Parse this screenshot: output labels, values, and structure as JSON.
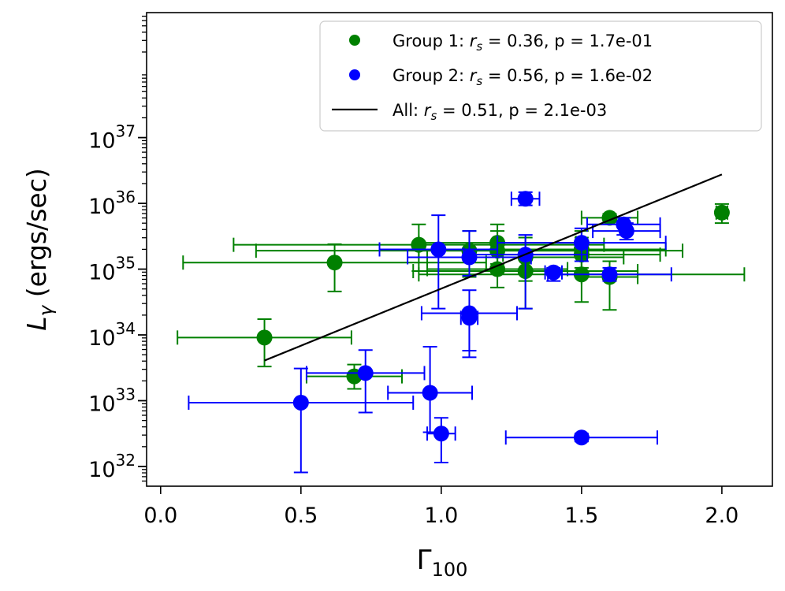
{
  "chart_data": {
    "type": "scatter",
    "title": "",
    "xlabel": "Γ",
    "xlabel_sub": "100",
    "ylabel": "L",
    "ylabel_sub": "γ",
    "ylabel_units": " (ergs/sec)",
    "xlim": [
      -0.05,
      2.18
    ],
    "ylim_log10": [
      31.7,
      38.9
    ],
    "yscale": "log",
    "grid": false,
    "x_ticks": [
      {
        "value": 0.0,
        "label": "0.0"
      },
      {
        "value": 0.5,
        "label": "0.5"
      },
      {
        "value": 1.0,
        "label": "1.0"
      },
      {
        "value": 1.5,
        "label": "1.5"
      },
      {
        "value": 2.0,
        "label": "2.0"
      }
    ],
    "y_ticks": [
      {
        "exp": 32,
        "base": "10",
        "sup": "32"
      },
      {
        "exp": 33,
        "base": "10",
        "sup": "33"
      },
      {
        "exp": 34,
        "base": "10",
        "sup": "34"
      },
      {
        "exp": 35,
        "base": "10",
        "sup": "35"
      },
      {
        "exp": 36,
        "base": "10",
        "sup": "36"
      },
      {
        "exp": 37,
        "base": "10",
        "sup": "37"
      }
    ],
    "legend": {
      "position": "top-right",
      "entries": [
        {
          "marker": "dot",
          "color": "#008000",
          "prefix": "Group 1: ",
          "rs_symbol": "r",
          "rs_sub": "s",
          "stats": " = 0.36, p = 1.7e-01"
        },
        {
          "marker": "dot",
          "color": "#0000ff",
          "prefix": "Group 2: ",
          "rs_symbol": "r",
          "rs_sub": "s",
          "stats": " = 0.56, p = 1.6e-02"
        },
        {
          "marker": "line",
          "color": "#000000",
          "prefix": "All: ",
          "rs_symbol": "r",
          "rs_sub": "s",
          "stats": " = 0.51, p = 2.1e-03"
        }
      ]
    },
    "fit_line": {
      "name": "All",
      "color": "#000000",
      "x": [
        0.37,
        2.0
      ],
      "log10_y": [
        33.61,
        36.44
      ]
    },
    "series": [
      {
        "name": "Group 1",
        "color": "#008000",
        "points": [
          {
            "x": 0.37,
            "logy": 33.96,
            "xlo": 0.06,
            "xhi": 0.68,
            "ylo": 33.52,
            "yhi": 34.24
          },
          {
            "x": 0.62,
            "logy": 35.1,
            "xlo": 0.08,
            "xhi": 1.16,
            "ylo": 34.66,
            "yhi": 35.38
          },
          {
            "x": 0.69,
            "logy": 33.37,
            "xlo": 0.52,
            "xhi": 0.86,
            "ylo": 33.18,
            "yhi": 33.55
          },
          {
            "x": 0.92,
            "logy": 35.37,
            "xlo": 0.26,
            "xhi": 1.58,
            "ylo": 34.97,
            "yhi": 35.68
          },
          {
            "x": 1.1,
            "logy": 35.28,
            "xlo": 0.34,
            "xhi": 1.86,
            "ylo": 34.88,
            "yhi": 35.58
          },
          {
            "x": 1.2,
            "logy": 35.4,
            "xlo": 0.92,
            "xhi": 1.48,
            "ylo": 35.08,
            "yhi": 35.68
          },
          {
            "x": 1.2,
            "logy": 35.0,
            "xlo": 0.95,
            "xhi": 1.45,
            "ylo": 34.72,
            "yhi": 35.28
          },
          {
            "x": 1.2,
            "logy": 35.28,
            "xlo": 0.92,
            "xhi": 1.48,
            "ylo": 34.95,
            "yhi": 35.58
          },
          {
            "x": 1.3,
            "logy": 35.18,
            "xlo": 0.95,
            "xhi": 1.65,
            "ylo": 34.82,
            "yhi": 35.48
          },
          {
            "x": 1.3,
            "logy": 34.97,
            "xlo": 0.9,
            "xhi": 1.7,
            "ylo": 34.4,
            "yhi": 35.28
          },
          {
            "x": 1.5,
            "logy": 35.3,
            "xlo": 1.2,
            "xhi": 1.8,
            "ylo": 35.02,
            "yhi": 35.58
          },
          {
            "x": 1.5,
            "logy": 35.22,
            "xlo": 1.22,
            "xhi": 1.78,
            "ylo": 34.95,
            "yhi": 35.48
          },
          {
            "x": 1.5,
            "logy": 34.92,
            "xlo": 0.92,
            "xhi": 2.08,
            "ylo": 34.5,
            "yhi": 35.2
          },
          {
            "x": 1.6,
            "logy": 34.88,
            "xlo": 1.5,
            "xhi": 1.7,
            "ylo": 34.38,
            "yhi": 35.12
          },
          {
            "x": 1.6,
            "logy": 35.78,
            "xlo": 1.5,
            "xhi": 1.7,
            "ylo": 35.72,
            "yhi": 35.84
          },
          {
            "x": 2.0,
            "logy": 35.86,
            "xlo": 1.98,
            "xhi": 2.02,
            "ylo": 35.7,
            "yhi": 35.99
          }
        ]
      },
      {
        "name": "Group 2",
        "color": "#0000ff",
        "points": [
          {
            "x": 0.5,
            "logy": 32.97,
            "xlo": 0.1,
            "xhi": 0.9,
            "ylo": 31.91,
            "yhi": 33.49
          },
          {
            "x": 0.73,
            "logy": 33.42,
            "xlo": 0.52,
            "xhi": 0.94,
            "ylo": 32.82,
            "yhi": 33.77
          },
          {
            "x": 0.96,
            "logy": 33.12,
            "xlo": 0.81,
            "xhi": 1.11,
            "ylo": 32.52,
            "yhi": 33.82
          },
          {
            "x": 1.0,
            "logy": 32.5,
            "xlo": 0.95,
            "xhi": 1.05,
            "ylo": 32.06,
            "yhi": 32.74
          },
          {
            "x": 0.99,
            "logy": 35.3,
            "xlo": 0.78,
            "xhi": 1.2,
            "ylo": 34.4,
            "yhi": 35.82
          },
          {
            "x": 1.1,
            "logy": 35.18,
            "xlo": 0.88,
            "xhi": 1.32,
            "ylo": 34.9,
            "yhi": 35.58
          },
          {
            "x": 1.1,
            "logy": 34.33,
            "xlo": 0.93,
            "xhi": 1.27,
            "ylo": 33.76,
            "yhi": 34.68
          },
          {
            "x": 1.1,
            "logy": 34.26,
            "xlo": 1.07,
            "xhi": 1.13,
            "ylo": 33.66,
            "yhi": 34.38
          },
          {
            "x": 1.3,
            "logy": 36.07,
            "xlo": 1.25,
            "xhi": 1.35,
            "ylo": 35.97,
            "yhi": 36.17
          },
          {
            "x": 1.3,
            "logy": 35.22,
            "xlo": 1.08,
            "xhi": 1.52,
            "ylo": 34.4,
            "yhi": 35.52
          },
          {
            "x": 1.4,
            "logy": 34.95,
            "xlo": 1.37,
            "xhi": 1.43,
            "ylo": 34.82,
            "yhi": 35.02
          },
          {
            "x": 1.5,
            "logy": 35.4,
            "xlo": 1.2,
            "xhi": 1.8,
            "ylo": 35.12,
            "yhi": 35.62
          },
          {
            "x": 1.5,
            "logy": 32.44,
            "xlo": 1.23,
            "xhi": 1.77,
            "ylo": 32.38,
            "yhi": 32.5
          },
          {
            "x": 1.6,
            "logy": 34.92,
            "xlo": 1.38,
            "xhi": 1.82,
            "ylo": 34.82,
            "yhi": 35.02
          },
          {
            "x": 1.65,
            "logy": 35.68,
            "xlo": 1.52,
            "xhi": 1.78,
            "ylo": 35.52,
            "yhi": 35.78
          },
          {
            "x": 1.66,
            "logy": 35.58,
            "xlo": 1.54,
            "xhi": 1.78,
            "ylo": 35.45,
            "yhi": 35.7
          }
        ]
      }
    ]
  }
}
